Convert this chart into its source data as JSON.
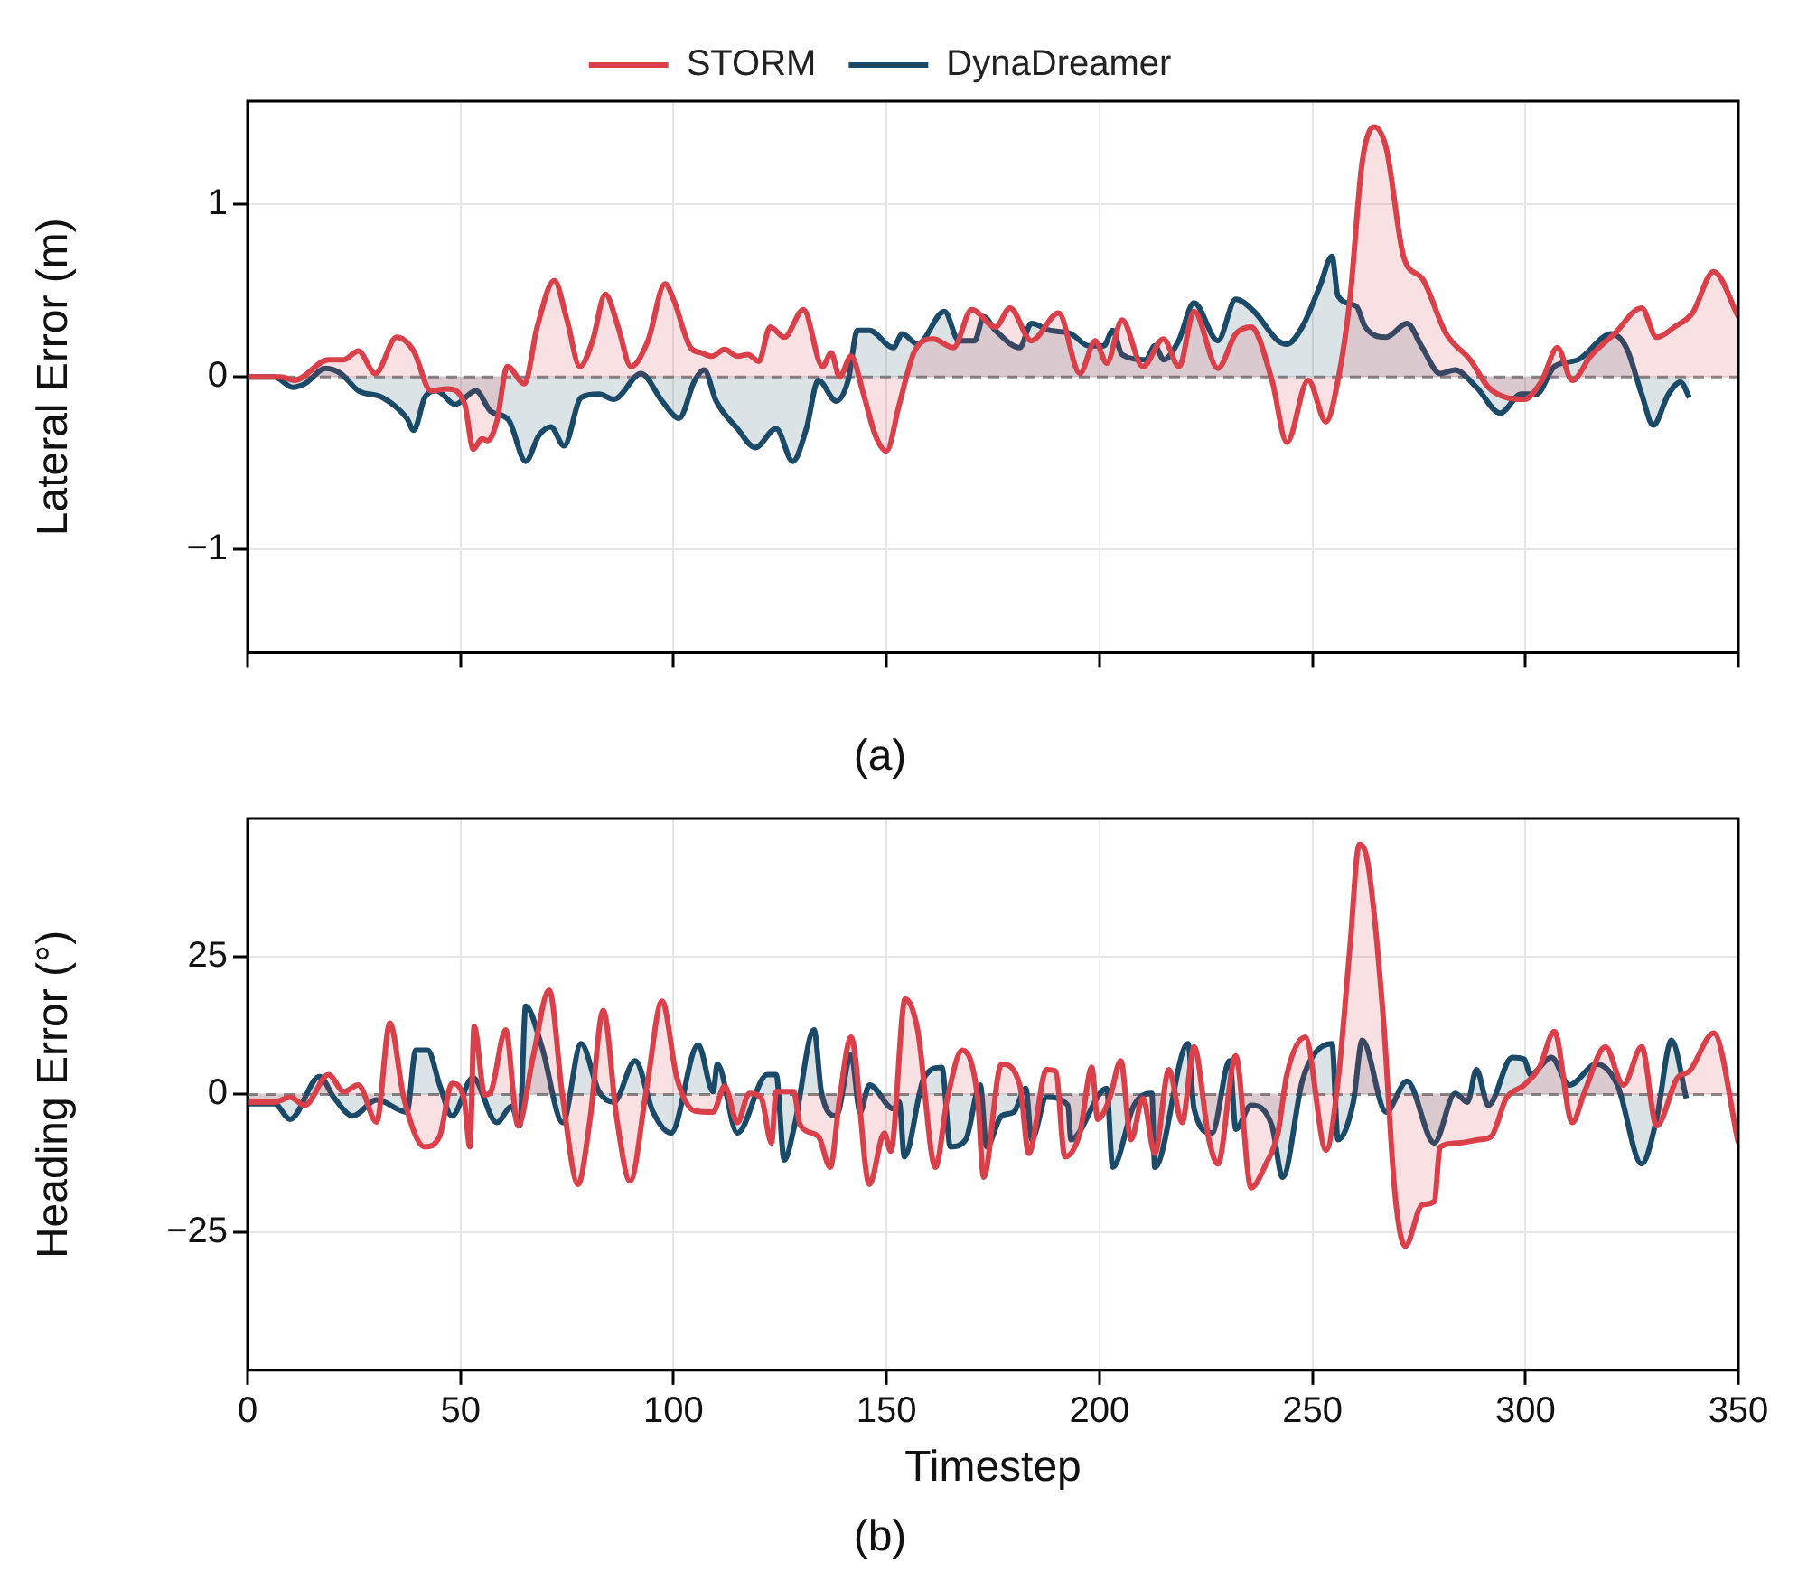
{
  "chart_data": [
    {
      "type": "area",
      "title": "(a)",
      "ylabel": "Lateral Error (m)",
      "legend": "top",
      "grid": true,
      "tick_labels": "y",
      "xlim": [
        0,
        350
      ],
      "xticks": [
        0,
        50,
        100,
        150,
        200,
        250,
        300,
        350
      ],
      "ylim": [
        -1.6,
        1.6
      ],
      "yticks": [
        {
          "value": -1,
          "label": "−1"
        },
        0,
        1
      ],
      "ref_lines": [
        {
          "axis": "y",
          "value": 0,
          "color": "#888888",
          "line_style": "dashed"
        }
      ],
      "series": [
        {
          "name": "STORM",
          "color": "#d9404a",
          "x": [
            0,
            7.8,
            11,
            19,
            22.6,
            26,
            30,
            35,
            39,
            43,
            47,
            51,
            53,
            55,
            56.4,
            58.5,
            61,
            65,
            68,
            72,
            75,
            78,
            81,
            84,
            87,
            90,
            94,
            98,
            100,
            104,
            106.5,
            109,
            112,
            115,
            117.5,
            120,
            122.7,
            126,
            130.5,
            135,
            137,
            139,
            141.7,
            144.6,
            147.4,
            150,
            153,
            156.6,
            161,
            165.7,
            170,
            175.6,
            179,
            184,
            190.4,
            195.4,
            199,
            201.7,
            205.3,
            210.2,
            215,
            218.7,
            222.2,
            227.8,
            232,
            235.6,
            240.5,
            244,
            249,
            253.2,
            256,
            258.8,
            261.7,
            264.5,
            267.3,
            271.5,
            275.8,
            281.4,
            287,
            291.3,
            295.5,
            299.7,
            303.9,
            307.5,
            311,
            315.3,
            320.9,
            327.3,
            330.8,
            335,
            339.2,
            344.2,
            350
          ],
          "values": [
            0,
            0,
            -0.02,
            0.1,
            0.1,
            0.15,
            0.02,
            0.23,
            0.15,
            -0.08,
            -0.07,
            -0.16,
            -0.42,
            -0.36,
            -0.37,
            -0.26,
            0.06,
            -0.04,
            0.29,
            0.56,
            0.33,
            0.06,
            0.21,
            0.48,
            0.29,
            0.06,
            0.21,
            0.54,
            0.45,
            0.17,
            0.14,
            0.12,
            0.16,
            0.12,
            0.13,
            0.09,
            0.29,
            0.23,
            0.39,
            0.06,
            0.14,
            0,
            0.12,
            -0.1,
            -0.34,
            -0.43,
            -0.16,
            0.15,
            0.22,
            0.17,
            0.39,
            0.29,
            0.4,
            0.21,
            0.37,
            0.02,
            0.21,
            0.08,
            0.33,
            0.06,
            0.22,
            0.06,
            0.38,
            0.05,
            0.25,
            0.29,
            -0.02,
            -0.38,
            -0.02,
            -0.26,
            -0.02,
            0.45,
            1.25,
            1.45,
            1.33,
            0.69,
            0.57,
            0.25,
            0.1,
            -0.06,
            -0.12,
            -0.13,
            -0.02,
            0.17,
            -0.02,
            0.12,
            0.25,
            0.4,
            0.23,
            0.29,
            0.37,
            0.61,
            0.35
          ]
        },
        {
          "name": "DynaDreamer",
          "color": "#1b4a68",
          "x": [
            0,
            6.3,
            10.6,
            13.4,
            18.3,
            21.9,
            26,
            31.7,
            37.4,
            39,
            41.6,
            44.4,
            48.7,
            53.6,
            57.1,
            61.3,
            65.3,
            68.4,
            71.2,
            74.3,
            78.3,
            82.5,
            86,
            92.4,
            97.3,
            101.3,
            105,
            107.2,
            110,
            115,
            119.2,
            124.1,
            128,
            131.2,
            134,
            138.2,
            141,
            143.2,
            146,
            151.6,
            153.7,
            157.3,
            163.6,
            167,
            170.7,
            172.8,
            175.6,
            181.3,
            184,
            188.3,
            193.3,
            197.5,
            201,
            203.1,
            205.3,
            210.9,
            213,
            215.1,
            218.6,
            222.2,
            227.8,
            232,
            236.3,
            241.9,
            244,
            247.6,
            251.8,
            254.6,
            256,
            260.3,
            262.4,
            267.3,
            272.2,
            275.8,
            280,
            283.5,
            288.5,
            294.1,
            299,
            302.6,
            306.8,
            312.4,
            320.2,
            323.7,
            327.3,
            330,
            333.6,
            336.4,
            338.5
          ],
          "values": [
            0,
            0,
            -0.06,
            -0.04,
            0.05,
            0.02,
            -0.08,
            -0.12,
            -0.24,
            -0.31,
            -0.12,
            -0.08,
            -0.16,
            -0.08,
            -0.2,
            -0.25,
            -0.49,
            -0.34,
            -0.29,
            -0.4,
            -0.12,
            -0.1,
            -0.13,
            0.02,
            -0.14,
            -0.24,
            -0.02,
            0.04,
            -0.14,
            -0.3,
            -0.41,
            -0.3,
            -0.49,
            -0.3,
            -0.02,
            -0.14,
            -0.02,
            0.27,
            0.27,
            0.17,
            0.25,
            0.19,
            0.38,
            0.21,
            0.21,
            0.35,
            0.27,
            0.17,
            0.31,
            0.27,
            0.25,
            0.18,
            0.18,
            0.27,
            0.13,
            0.1,
            0.18,
            0.1,
            0.21,
            0.43,
            0.21,
            0.45,
            0.38,
            0.21,
            0.19,
            0.29,
            0.53,
            0.7,
            0.47,
            0.41,
            0.29,
            0.23,
            0.31,
            0.17,
            0.02,
            0.04,
            -0.06,
            -0.21,
            -0.1,
            -0.1,
            0.06,
            0.1,
            0.25,
            0.17,
            -0.1,
            -0.28,
            -0.1,
            -0.03,
            -0.12
          ]
        }
      ]
    },
    {
      "type": "area",
      "title": "(b)",
      "xlabel": "Timestep",
      "ylabel": "Heading Error (°)",
      "grid": true,
      "xlim": [
        0,
        350
      ],
      "xticks": [
        0,
        50,
        100,
        150,
        200,
        250,
        300,
        350
      ],
      "ylim": [
        -50,
        50
      ],
      "yticks": [
        {
          "value": -25,
          "label": "−25"
        },
        0,
        25
      ],
      "ref_lines": [
        {
          "axis": "y",
          "value": 0,
          "color": "#888888",
          "line_style": "dashed"
        }
      ],
      "series": [
        {
          "color": "#d9404a",
          "x": [
            0,
            6.3,
            10,
            13.4,
            19,
            22.6,
            26,
            30.3,
            33.4,
            36.7,
            41.6,
            45.1,
            48,
            50.8,
            52.2,
            53.2,
            55.7,
            57.1,
            60.6,
            63.5,
            67,
            70.8,
            74,
            77.6,
            80.4,
            83.5,
            86.7,
            89.8,
            93.8,
            97.3,
            100.8,
            105,
            109.3,
            112,
            115,
            117.8,
            120.6,
            123,
            124.1,
            128.2,
            129.7,
            134,
            136.8,
            139,
            141.7,
            146,
            149.5,
            151,
            154.4,
            157.3,
            161.5,
            164.3,
            167.8,
            171.4,
            172.8,
            177,
            181.3,
            183.4,
            187.6,
            189.7,
            191.9,
            195.4,
            198.2,
            199.6,
            202.4,
            205,
            207.4,
            210.2,
            213,
            216.3,
            219.4,
            222.2,
            225.7,
            227.8,
            232,
            235.6,
            239.1,
            241.9,
            244,
            248.3,
            253.2,
            256,
            258.8,
            261,
            263.1,
            266.6,
            269.4,
            271.8,
            275.8,
            278.6,
            280,
            284.2,
            289.2,
            292,
            295.5,
            299.7,
            303.3,
            306.8,
            311,
            313.9,
            318.8,
            323,
            327.3,
            330.8,
            335.7,
            338.5,
            344.2,
            350
          ],
          "values": [
            -1.4,
            -1.4,
            -0.5,
            -2,
            3.6,
            0.5,
            1.7,
            -5,
            12.9,
            -0.7,
            -9.5,
            -7.6,
            2,
            -0.7,
            -9.5,
            12.3,
            -0.1,
            0.5,
            11.7,
            -5.7,
            6.7,
            18.9,
            -0.7,
            -16.3,
            -4.5,
            15.2,
            -4.5,
            -15.7,
            1.7,
            16.9,
            3,
            -3,
            -3.2,
            1.5,
            -5.1,
            0.2,
            -0.7,
            -8.8,
            0.5,
            0.5,
            -5.5,
            -7.6,
            -13.2,
            -0.7,
            10.4,
            -16.3,
            -7,
            -10.3,
            17.3,
            11.7,
            -13.2,
            -0.7,
            8,
            -0.7,
            -15,
            5.5,
            1.7,
            -10.7,
            4.5,
            4.2,
            -11.3,
            -7,
            4.9,
            -4.5,
            -0.7,
            6.1,
            -8.2,
            -0.7,
            -10.7,
            4.5,
            -5.1,
            8.6,
            -8.2,
            -12.6,
            7,
            -16.9,
            -12.6,
            -7,
            3.6,
            10.4,
            -10.1,
            2.4,
            26.6,
            45.3,
            41.5,
            14.2,
            -18.2,
            -27.5,
            -20,
            -19.4,
            -9.5,
            -8.8,
            -8.2,
            -7.6,
            -0.7,
            1.7,
            4.9,
            11.4,
            -5.1,
            0.5,
            8.6,
            1.7,
            8.6,
            -5.7,
            3,
            4.2,
            11.1,
            -8.8
          ]
        },
        {
          "color": "#1b4a68",
          "x": [
            0,
            6.3,
            10,
            16.9,
            20.4,
            24.7,
            30.3,
            37.4,
            39.5,
            42.3,
            45.1,
            48,
            52.9,
            58.5,
            62,
            63.9,
            65.3,
            69.1,
            74,
            78.3,
            82.5,
            86,
            91,
            95.2,
            99.4,
            105.8,
            109.3,
            110.3,
            115,
            122,
            124.1,
            126,
            128.4,
            133,
            134.7,
            138.2,
            141.7,
            143.8,
            146,
            151.6,
            153,
            154.2,
            158.8,
            163,
            165,
            168.6,
            172,
            173.5,
            177,
            179.9,
            182.7,
            184.1,
            187.6,
            192.6,
            193.3,
            201.7,
            203.1,
            208.1,
            212.3,
            213,
            220.8,
            222.2,
            226.4,
            230.6,
            232,
            235.6,
            240.5,
            243,
            247.6,
            250.4,
            254.6,
            256,
            259.6,
            261.7,
            267.3,
            272.2,
            278.6,
            283.5,
            286.4,
            288.5,
            291.3,
            296.9,
            299.7,
            301.2,
            306.1,
            310.3,
            316.7,
            321.6,
            327.3,
            330.8,
            334.3,
            337.8
          ],
          "values": [
            -1.7,
            -1.7,
            -4.5,
            3.2,
            -0.7,
            -3.9,
            -1,
            -3.2,
            8,
            8,
            1.7,
            -3.9,
            3,
            -5.1,
            -2.2,
            -5.7,
            16,
            8.6,
            -5.1,
            9.2,
            0.5,
            -1.4,
            6.1,
            -3.2,
            -7,
            9,
            0.5,
            5.5,
            -7,
            3.6,
            3.6,
            -11.9,
            -5.7,
            11.7,
            0.5,
            -3.9,
            7.3,
            -3.2,
            1.7,
            -2.6,
            -1.4,
            -11.3,
            3,
            4.9,
            -9.5,
            -8.2,
            1.7,
            -9.5,
            -3.9,
            -3.2,
            1.1,
            -8.2,
            -0.5,
            -2,
            -8.2,
            1.1,
            -13.2,
            -2,
            0.2,
            -13.2,
            9.2,
            -2.6,
            -7,
            6.1,
            -6.3,
            -2,
            -5.7,
            -15,
            2.4,
            7.3,
            9.2,
            -8.2,
            -1.4,
            9.8,
            -3.2,
            2.4,
            -8.8,
            0.2,
            -1.4,
            4.5,
            -2,
            6.7,
            6.4,
            3.6,
            6.7,
            1.7,
            5.5,
            1.7,
            -12.6,
            -4.5,
            9.8,
            -0.7
          ]
        }
      ]
    }
  ]
}
